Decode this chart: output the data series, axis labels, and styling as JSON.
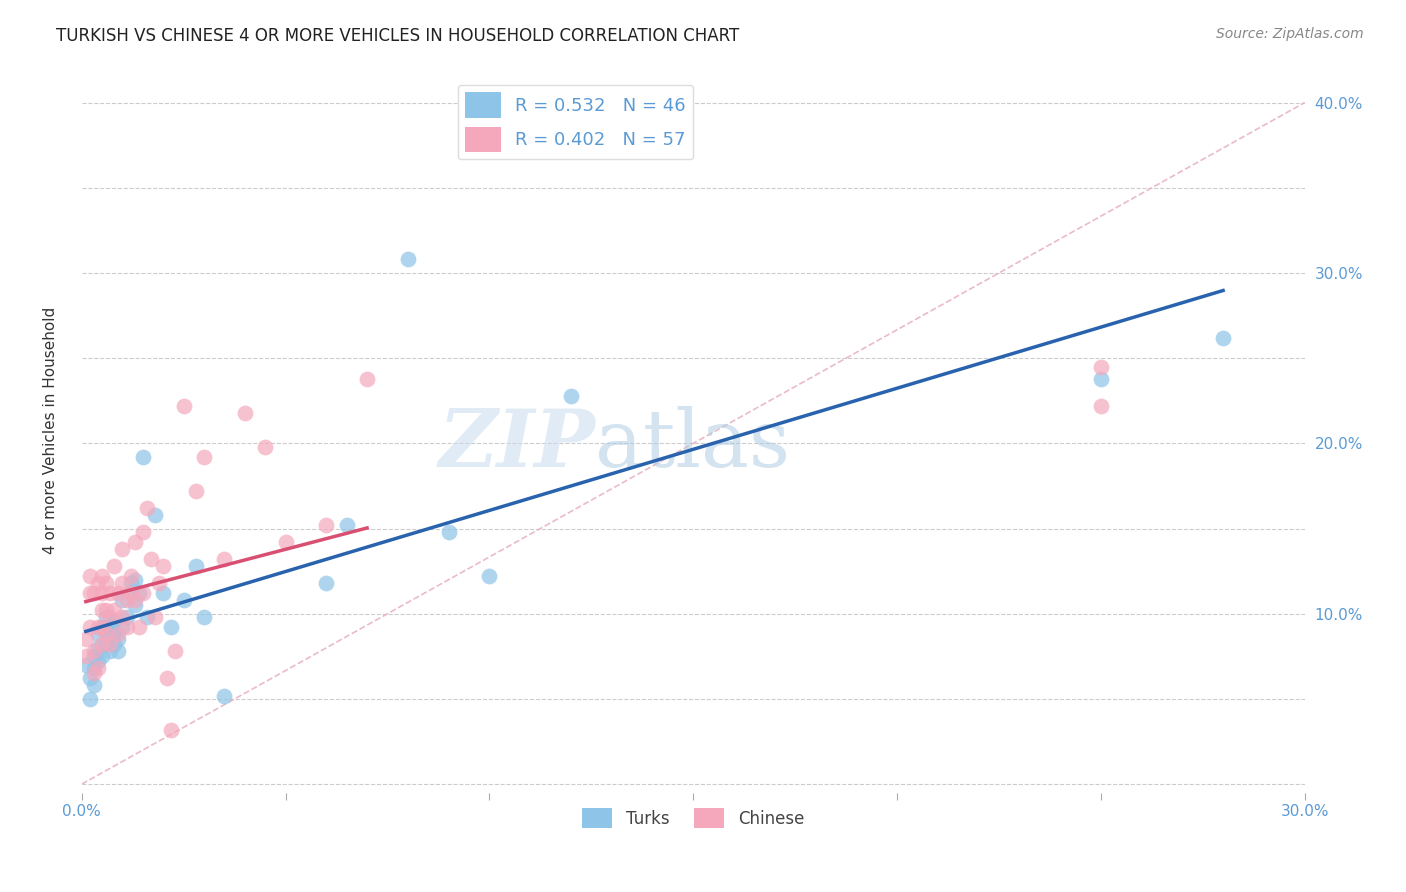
{
  "title": "TURKISH VS CHINESE 4 OR MORE VEHICLES IN HOUSEHOLD CORRELATION CHART",
  "source": "Source: ZipAtlas.com",
  "ylabel": "4 or more Vehicles in Household",
  "xlim": [
    0.0,
    0.3
  ],
  "ylim": [
    -0.005,
    0.42
  ],
  "x_ticks": [
    0.0,
    0.05,
    0.1,
    0.15,
    0.2,
    0.25,
    0.3
  ],
  "y_ticks": [
    0.0,
    0.05,
    0.1,
    0.15,
    0.2,
    0.25,
    0.3,
    0.35,
    0.4
  ],
  "turks_R": 0.532,
  "turks_N": 46,
  "chinese_R": 0.402,
  "chinese_N": 57,
  "turks_color": "#8EC4E8",
  "chinese_color": "#F5A8BC",
  "turks_line_color": "#2963AE",
  "chinese_line_color": "#D94F72",
  "diagonal_color": "#E8B4C0",
  "background_color": "#FFFFFF",
  "grid_color": "#CCCCCC",
  "turks_x": [
    0.001,
    0.002,
    0.002,
    0.003,
    0.003,
    0.003,
    0.004,
    0.004,
    0.004,
    0.005,
    0.005,
    0.006,
    0.006,
    0.006,
    0.007,
    0.007,
    0.008,
    0.008,
    0.008,
    0.009,
    0.009,
    0.01,
    0.01,
    0.011,
    0.012,
    0.012,
    0.013,
    0.013,
    0.014,
    0.015,
    0.016,
    0.018,
    0.02,
    0.022,
    0.025,
    0.028,
    0.03,
    0.035,
    0.06,
    0.065,
    0.08,
    0.09,
    0.1,
    0.12,
    0.25,
    0.28
  ],
  "turks_y": [
    0.07,
    0.062,
    0.05,
    0.068,
    0.058,
    0.075,
    0.072,
    0.08,
    0.088,
    0.075,
    0.092,
    0.082,
    0.09,
    0.098,
    0.078,
    0.092,
    0.088,
    0.095,
    0.082,
    0.085,
    0.078,
    0.092,
    0.108,
    0.098,
    0.112,
    0.118,
    0.105,
    0.12,
    0.112,
    0.192,
    0.098,
    0.158,
    0.112,
    0.092,
    0.108,
    0.128,
    0.098,
    0.052,
    0.118,
    0.152,
    0.308,
    0.148,
    0.122,
    0.228,
    0.238,
    0.262
  ],
  "chinese_x": [
    0.001,
    0.001,
    0.002,
    0.002,
    0.002,
    0.003,
    0.003,
    0.003,
    0.004,
    0.004,
    0.004,
    0.005,
    0.005,
    0.005,
    0.005,
    0.005,
    0.006,
    0.006,
    0.006,
    0.007,
    0.007,
    0.007,
    0.008,
    0.008,
    0.009,
    0.009,
    0.01,
    0.01,
    0.01,
    0.011,
    0.011,
    0.012,
    0.012,
    0.013,
    0.013,
    0.014,
    0.015,
    0.015,
    0.016,
    0.017,
    0.018,
    0.019,
    0.02,
    0.021,
    0.022,
    0.023,
    0.025,
    0.028,
    0.03,
    0.035,
    0.04,
    0.045,
    0.05,
    0.06,
    0.07,
    0.25,
    0.25
  ],
  "chinese_y": [
    0.075,
    0.085,
    0.112,
    0.122,
    0.092,
    0.065,
    0.078,
    0.112,
    0.068,
    0.092,
    0.118,
    0.082,
    0.092,
    0.102,
    0.112,
    0.122,
    0.088,
    0.102,
    0.118,
    0.082,
    0.098,
    0.112,
    0.128,
    0.102,
    0.088,
    0.112,
    0.098,
    0.118,
    0.138,
    0.092,
    0.108,
    0.112,
    0.122,
    0.108,
    0.142,
    0.092,
    0.112,
    0.148,
    0.162,
    0.132,
    0.098,
    0.118,
    0.128,
    0.062,
    0.032,
    0.078,
    0.222,
    0.172,
    0.192,
    0.132,
    0.218,
    0.198,
    0.142,
    0.152,
    0.238,
    0.222,
    0.245
  ]
}
